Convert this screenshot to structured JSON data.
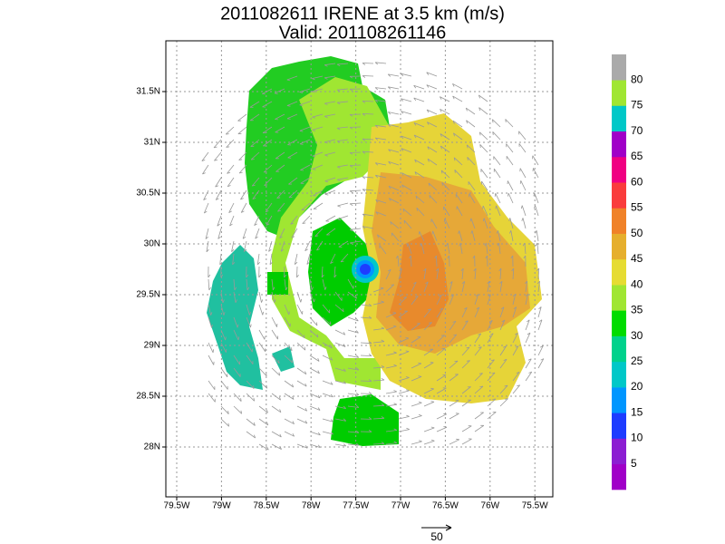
{
  "title": "2011082611 IRENE at 3.5 km (m/s)",
  "subtitle": "Valid: 201108261146",
  "map": {
    "lon_labels": [
      "79.5W",
      "79W",
      "78.5W",
      "78W",
      "77.5W",
      "77W",
      "76.5W",
      "76W",
      "75.5W"
    ],
    "lat_labels": [
      "28N",
      "28.5N",
      "29N",
      "29.5N",
      "30N",
      "30.5N",
      "31N",
      "31.5N"
    ]
  },
  "colorbar": {
    "labels": [
      "5",
      "10",
      "15",
      "20",
      "25",
      "30",
      "35",
      "40",
      "45",
      "50",
      "55",
      "60",
      "65",
      "70",
      "75",
      "80"
    ],
    "colors": [
      "#a000c8",
      "#8c1ed2",
      "#1e3cff",
      "#0096ff",
      "#00c8c8",
      "#00d28c",
      "#00dc00",
      "#a0e632",
      "#e6dc32",
      "#e6af2d",
      "#f08228",
      "#fa3c3c",
      "#f00082",
      "#a000c8",
      "#00c8c8",
      "#a0e632",
      "#aaaaaa"
    ]
  },
  "reference_vector": {
    "label": "50"
  }
}
